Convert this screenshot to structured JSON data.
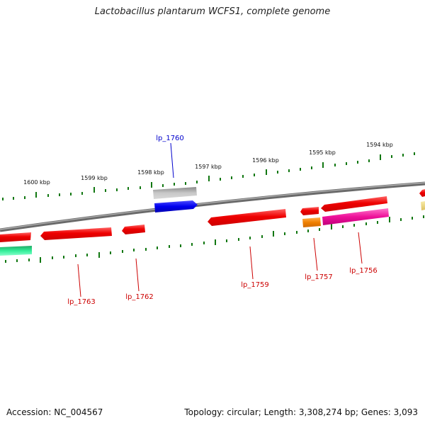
{
  "title": "Lactobacillus plantarum WCFS1, complete genome",
  "footer": {
    "accession": "Accession: NC_004567",
    "summary": "Topology: circular; Length: 3,308,274 bp; Genes: 3,093"
  },
  "scale_labels": [
    "1600 kbp",
    "1599 kbp",
    "1598 kbp",
    "1597 kbp",
    "1596 kbp",
    "1595 kbp",
    "1594 kbp"
  ],
  "gene_labels": {
    "lp_1760": "lp_1760",
    "lp_1763": "lp_1763",
    "lp_1762": "lp_1762",
    "lp_1759": "lp_1759",
    "lp_1757": "lp_1757",
    "lp_1756": "lp_1756"
  },
  "colors": {
    "forward_label": "#0000cc",
    "reverse_label": "#cc0000",
    "tick": "#117711",
    "backbone": "#777777",
    "red_gene": "#ee0000",
    "blue_gene": "#0000ee",
    "gray_gene": "#b0b0b0",
    "orange_gene": "#f08000",
    "magenta_gene": "#ee1199",
    "teal_gene": "#22dd99",
    "yellow_gene": "#eedd88"
  }
}
